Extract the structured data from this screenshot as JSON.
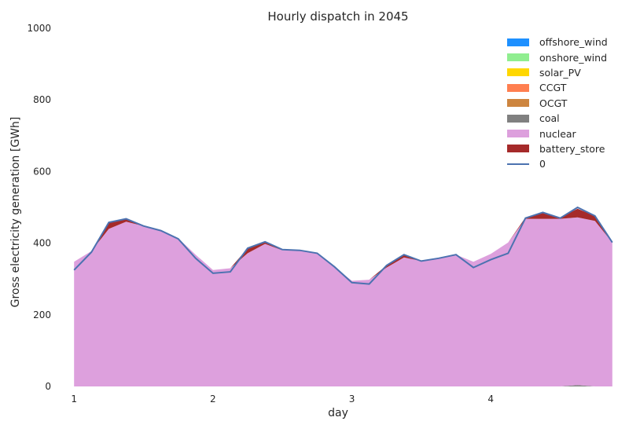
{
  "chart_data": {
    "type": "area",
    "title": "Hourly dispatch in 2045",
    "xlabel": "day",
    "ylabel": "Gross electricity generation [GWh]",
    "xlim": [
      0.88,
      4.95
    ],
    "ylim": [
      0,
      1000
    ],
    "xticks": [
      "1",
      "2",
      "3",
      "4"
    ],
    "yticks": [
      "0",
      "200",
      "400",
      "600",
      "800",
      "1000"
    ],
    "x": [
      1.0,
      1.125,
      1.25,
      1.375,
      1.5,
      1.625,
      1.75,
      1.875,
      2.0,
      2.125,
      2.25,
      2.375,
      2.5,
      2.625,
      2.75,
      2.875,
      3.0,
      3.125,
      3.25,
      3.375,
      3.5,
      3.625,
      3.75,
      3.875,
      4.0,
      4.125,
      4.25,
      4.375,
      4.5,
      4.625,
      4.75,
      4.875
    ],
    "series": [
      {
        "name": "offshore_wind",
        "color": "#1e90ff",
        "values": [
          0,
          0,
          0,
          0,
          0,
          0,
          0,
          0,
          0,
          0,
          0,
          0,
          0,
          0,
          0,
          0,
          0,
          0,
          0,
          0,
          0,
          0,
          0,
          0,
          0,
          0,
          0,
          0,
          0,
          0,
          0,
          0
        ]
      },
      {
        "name": "onshore_wind",
        "color": "#90ee90",
        "values": [
          0,
          0,
          0,
          0,
          0,
          0,
          0,
          0,
          0,
          0,
          0,
          0,
          0,
          0,
          0,
          0,
          0,
          0,
          0,
          0,
          0,
          0,
          0,
          0,
          0,
          0,
          0,
          0,
          0,
          0,
          0,
          0
        ]
      },
      {
        "name": "solar_PV",
        "color": "#ffd700",
        "values": [
          0,
          0,
          0,
          0,
          0,
          0,
          0,
          0,
          0,
          0,
          0,
          0,
          0,
          0,
          0,
          0,
          0,
          0,
          0,
          0,
          0,
          0,
          0,
          0,
          0,
          0,
          0,
          0,
          0,
          0,
          0,
          0
        ]
      },
      {
        "name": "CCGT",
        "color": "#ff7f50",
        "values": [
          0,
          0,
          0,
          0,
          0,
          0,
          0,
          0,
          0,
          0,
          0,
          0,
          0,
          0,
          0,
          0,
          0,
          0,
          0,
          0,
          0,
          0,
          0,
          0,
          0,
          0,
          0,
          0,
          0,
          0,
          0,
          0
        ]
      },
      {
        "name": "OCGT",
        "color": "#cd853f",
        "values": [
          0,
          0,
          0,
          0,
          0,
          0,
          0,
          0,
          0,
          0,
          0,
          0,
          0,
          0,
          0,
          0,
          0,
          0,
          0,
          0,
          0,
          0,
          0,
          0,
          0,
          0,
          0,
          0,
          0,
          0,
          0,
          0
        ]
      },
      {
        "name": "coal",
        "color": "#808080",
        "values": [
          0,
          0,
          0,
          0,
          0,
          0,
          0,
          0,
          0,
          0,
          0,
          0,
          0,
          0,
          0,
          0,
          0,
          0,
          0,
          0,
          0,
          0,
          0,
          0,
          0,
          0,
          0,
          0,
          0,
          4,
          0,
          0
        ]
      },
      {
        "name": "nuclear",
        "color": "#dda0dd",
        "values": [
          348,
          378,
          440,
          460,
          448,
          436,
          414,
          368,
          325,
          330,
          372,
          398,
          380,
          380,
          372,
          334,
          295,
          298,
          332,
          360,
          350,
          358,
          368,
          348,
          370,
          402,
          468,
          468,
          468,
          468,
          462,
          402
        ]
      },
      {
        "name": "battery_store",
        "color": "#a52a2a",
        "values": [
          0,
          0,
          18,
          8,
          0,
          0,
          0,
          0,
          0,
          0,
          14,
          6,
          0,
          0,
          0,
          0,
          0,
          0,
          6,
          8,
          0,
          0,
          0,
          0,
          0,
          0,
          4,
          18,
          4,
          24,
          14,
          0
        ]
      }
    ],
    "demand": {
      "name": "0",
      "color": "#4c72b0",
      "values": [
        325,
        375,
        458,
        468,
        448,
        435,
        412,
        358,
        316,
        320,
        386,
        404,
        382,
        380,
        372,
        334,
        290,
        286,
        338,
        368,
        350,
        358,
        368,
        332,
        354,
        372,
        470,
        486,
        470,
        500,
        476,
        402
      ]
    },
    "legend_position": "top-right",
    "grid": false
  }
}
